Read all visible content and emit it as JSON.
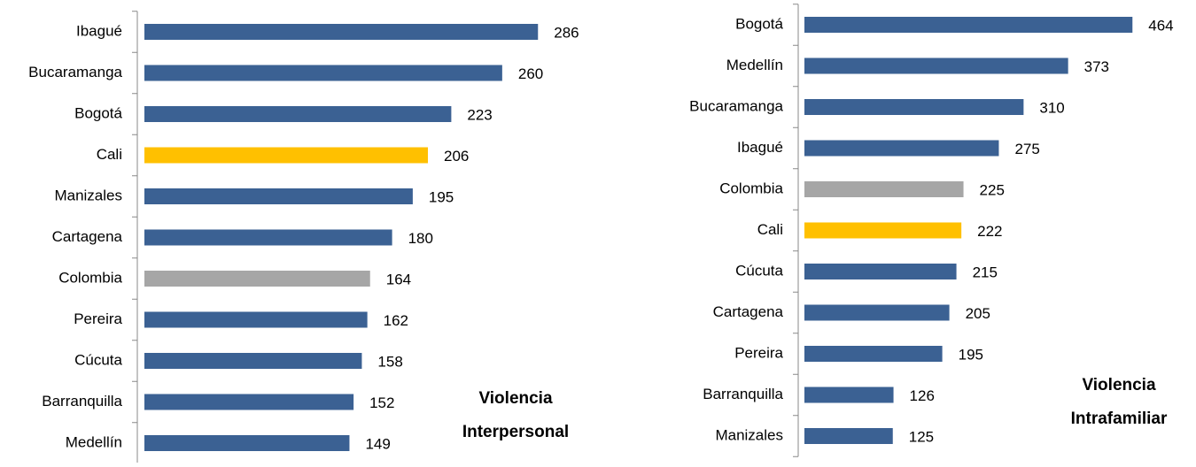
{
  "chart_data": [
    {
      "type": "bar",
      "orientation": "horizontal",
      "title": "Violencia Interpersonal",
      "categories": [
        "Ibagué",
        "Bucaramanga",
        "Bogotá",
        "Cali",
        "Manizales",
        "Cartagena",
        "Colombia",
        "Pereira",
        "Cúcuta",
        "Barranquilla",
        "Medellín"
      ],
      "values": [
        286,
        260,
        223,
        206,
        195,
        180,
        164,
        162,
        158,
        152,
        149
      ],
      "colors": [
        "#3b6193",
        "#3b6193",
        "#3b6193",
        "#ffc000",
        "#3b6193",
        "#3b6193",
        "#a6a6a6",
        "#3b6193",
        "#3b6193",
        "#3b6193",
        "#3b6193"
      ],
      "xlim": [
        0,
        300
      ]
    },
    {
      "type": "bar",
      "orientation": "horizontal",
      "title": "Violencia Intrafamiliar",
      "categories": [
        "Bogotá",
        "Medellín",
        "Bucaramanga",
        "Ibagué",
        "Colombia",
        "Cali",
        "Cúcuta",
        "Cartagena",
        "Pereira",
        "Barranquilla",
        "Manizales"
      ],
      "values": [
        464,
        373,
        310,
        275,
        225,
        222,
        215,
        205,
        195,
        126,
        125
      ],
      "colors": [
        "#3b6193",
        "#3b6193",
        "#3b6193",
        "#3b6193",
        "#a6a6a6",
        "#ffc000",
        "#3b6193",
        "#3b6193",
        "#3b6193",
        "#3b6193",
        "#3b6193"
      ],
      "xlim": [
        0,
        500
      ]
    }
  ]
}
